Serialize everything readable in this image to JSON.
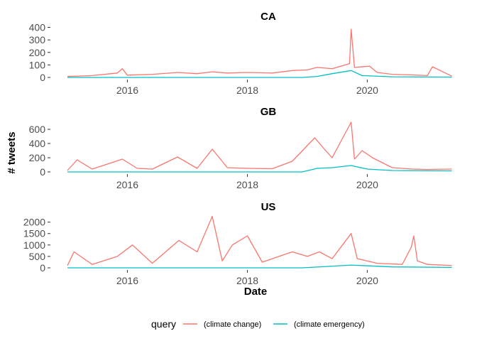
{
  "chart_data": {
    "type": "line",
    "xlabel": "Date",
    "ylabel": "# tweets",
    "xlim": [
      "2015-01-01",
      "2021-06-01"
    ],
    "x_ticks": [
      "2016",
      "2018",
      "2020"
    ],
    "grid": false,
    "legend": {
      "title": "query",
      "position": "bottom",
      "entries": [
        {
          "name": "(climate change)",
          "color": "#F8766D"
        },
        {
          "name": "(climate emergency)",
          "color": "#00BFC4"
        }
      ]
    },
    "panels": [
      {
        "title": "CA",
        "ylim": [
          0,
          420
        ],
        "y_ticks": [
          0,
          100,
          200,
          300,
          400
        ],
        "y_tick_labels": [
          "0",
          "100",
          "200",
          "300",
          "400"
        ],
        "series": [
          {
            "name": "(climate change)",
            "color": "#F8766D",
            "points": [
              [
                "2015-01-01",
                8
              ],
              [
                "2015-06-01",
                15
              ],
              [
                "2015-11-01",
                35
              ],
              [
                "2015-12-01",
                70
              ],
              [
                "2016-01-01",
                18
              ],
              [
                "2016-06-01",
                25
              ],
              [
                "2016-11-01",
                40
              ],
              [
                "2017-03-01",
                30
              ],
              [
                "2017-06-01",
                45
              ],
              [
                "2017-09-01",
                35
              ],
              [
                "2018-01-01",
                40
              ],
              [
                "2018-06-01",
                35
              ],
              [
                "2018-10-01",
                55
              ],
              [
                "2019-01-01",
                60
              ],
              [
                "2019-03-01",
                80
              ],
              [
                "2019-06-01",
                70
              ],
              [
                "2019-09-15",
                110
              ],
              [
                "2019-09-25",
                385
              ],
              [
                "2019-10-15",
                80
              ],
              [
                "2020-01-15",
                90
              ],
              [
                "2020-03-01",
                40
              ],
              [
                "2020-06-01",
                25
              ],
              [
                "2020-10-01",
                20
              ],
              [
                "2021-01-01",
                15
              ],
              [
                "2021-02-01",
                85
              ],
              [
                "2021-05-30",
                10
              ]
            ]
          },
          {
            "name": "(climate emergency)",
            "color": "#00BFC4",
            "points": [
              [
                "2015-01-01",
                0
              ],
              [
                "2018-12-01",
                0
              ],
              [
                "2019-03-01",
                8
              ],
              [
                "2019-06-01",
                30
              ],
              [
                "2019-09-25",
                55
              ],
              [
                "2019-12-01",
                15
              ],
              [
                "2020-06-01",
                5
              ],
              [
                "2021-05-30",
                3
              ]
            ]
          }
        ]
      },
      {
        "title": "GB",
        "ylim": [
          0,
          720
        ],
        "y_ticks": [
          0,
          200,
          400,
          600
        ],
        "y_tick_labels": [
          "0",
          "200",
          "400",
          "600"
        ],
        "series": [
          {
            "name": "(climate change)",
            "color": "#F8766D",
            "points": [
              [
                "2015-01-01",
                20
              ],
              [
                "2015-03-01",
                170
              ],
              [
                "2015-06-01",
                40
              ],
              [
                "2015-12-01",
                180
              ],
              [
                "2016-03-01",
                50
              ],
              [
                "2016-06-01",
                40
              ],
              [
                "2016-11-01",
                210
              ],
              [
                "2017-03-01",
                50
              ],
              [
                "2017-06-01",
                320
              ],
              [
                "2017-09-01",
                60
              ],
              [
                "2018-01-01",
                50
              ],
              [
                "2018-06-01",
                45
              ],
              [
                "2018-10-01",
                150
              ],
              [
                "2019-02-15",
                480
              ],
              [
                "2019-04-15",
                320
              ],
              [
                "2019-06-01",
                200
              ],
              [
                "2019-09-25",
                700
              ],
              [
                "2019-10-15",
                180
              ],
              [
                "2019-12-01",
                300
              ],
              [
                "2020-02-01",
                200
              ],
              [
                "2020-06-01",
                60
              ],
              [
                "2020-10-01",
                40
              ],
              [
                "2021-01-01",
                35
              ],
              [
                "2021-05-30",
                40
              ]
            ]
          },
          {
            "name": "(climate emergency)",
            "color": "#00BFC4",
            "points": [
              [
                "2015-01-01",
                0
              ],
              [
                "2018-12-01",
                0
              ],
              [
                "2019-03-01",
                50
              ],
              [
                "2019-06-01",
                60
              ],
              [
                "2019-09-25",
                90
              ],
              [
                "2020-01-01",
                40
              ],
              [
                "2020-06-01",
                20
              ],
              [
                "2021-05-30",
                15
              ]
            ]
          }
        ]
      },
      {
        "title": "US",
        "ylim": [
          0,
          2300
        ],
        "y_ticks": [
          0,
          500,
          1000,
          1500,
          2000
        ],
        "y_tick_labels": [
          "0",
          "500",
          "1000",
          "1500",
          "2000"
        ],
        "series": [
          {
            "name": "(climate change)",
            "color": "#F8766D",
            "points": [
              [
                "2015-01-01",
                100
              ],
              [
                "2015-02-10",
                700
              ],
              [
                "2015-06-01",
                150
              ],
              [
                "2015-11-01",
                500
              ],
              [
                "2016-02-01",
                1000
              ],
              [
                "2016-06-01",
                200
              ],
              [
                "2016-11-10",
                1200
              ],
              [
                "2017-03-01",
                700
              ],
              [
                "2017-06-01",
                2250
              ],
              [
                "2017-08-01",
                300
              ],
              [
                "2017-10-01",
                1000
              ],
              [
                "2018-01-01",
                1400
              ],
              [
                "2018-04-01",
                250
              ],
              [
                "2018-10-01",
                700
              ],
              [
                "2019-01-01",
                500
              ],
              [
                "2019-03-15",
                700
              ],
              [
                "2019-06-01",
                400
              ],
              [
                "2019-09-25",
                1500
              ],
              [
                "2019-11-01",
                400
              ],
              [
                "2020-03-01",
                200
              ],
              [
                "2020-08-01",
                150
              ],
              [
                "2020-09-25",
                900
              ],
              [
                "2020-10-10",
                1400
              ],
              [
                "2020-11-01",
                300
              ],
              [
                "2021-01-01",
                150
              ],
              [
                "2021-05-30",
                100
              ]
            ]
          },
          {
            "name": "(climate emergency)",
            "color": "#00BFC4",
            "points": [
              [
                "2015-01-01",
                0
              ],
              [
                "2018-12-01",
                0
              ],
              [
                "2019-05-01",
                60
              ],
              [
                "2019-09-25",
                120
              ],
              [
                "2020-06-01",
                40
              ],
              [
                "2021-05-30",
                20
              ]
            ]
          }
        ]
      }
    ]
  }
}
